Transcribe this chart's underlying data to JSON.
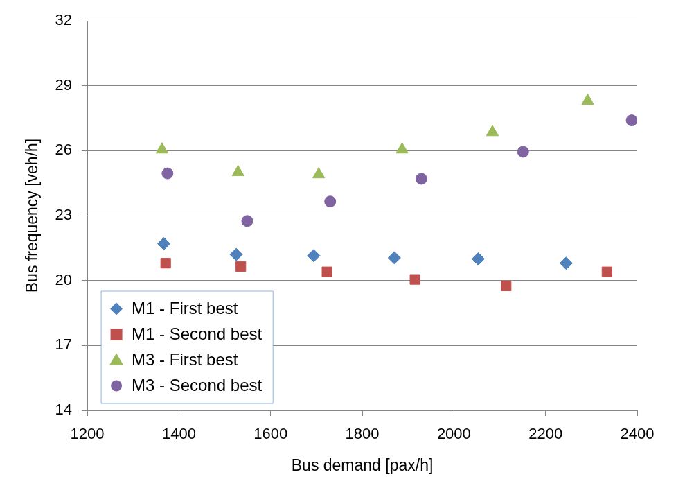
{
  "chart_data": {
    "type": "scatter",
    "xlabel": "Bus demand [pax/h]",
    "ylabel": "Bus frequency [veh/h]",
    "xlim": [
      1200,
      2400
    ],
    "xticks": [
      1200,
      1400,
      1600,
      1800,
      2000,
      2200,
      2400
    ],
    "ylim": [
      14,
      32
    ],
    "yticks": [
      14,
      17,
      20,
      23,
      26,
      29,
      32
    ],
    "grid": "y",
    "legend": "bottom left",
    "series": [
      {
        "name": "M1 - First best",
        "color": "#4f81bd",
        "marker": "diamond",
        "x": [
          1367,
          1525,
          1694,
          1870,
          2053,
          2245
        ],
        "values": [
          21.7,
          21.2,
          21.15,
          21.05,
          21.0,
          20.8
        ]
      },
      {
        "name": "M1 - Second best",
        "color": "#c0504d",
        "marker": "square",
        "x": [
          1371,
          1535,
          1723,
          1915,
          2114,
          2334
        ],
        "values": [
          20.8,
          20.65,
          20.4,
          20.05,
          19.75,
          20.4
        ]
      },
      {
        "name": "M3 - First best",
        "color": "#9bbb59",
        "marker": "triangle",
        "x": [
          1363,
          1529,
          1705,
          1887,
          2084,
          2292
        ],
        "values": [
          26.05,
          25.0,
          24.9,
          26.05,
          26.85,
          28.3
        ]
      },
      {
        "name": "M3 - Second best",
        "color": "#8064a2",
        "marker": "circle",
        "x": [
          1375,
          1549,
          1730,
          1929,
          2151,
          2388
        ],
        "values": [
          24.95,
          22.75,
          23.65,
          24.7,
          25.95,
          27.4
        ]
      }
    ]
  }
}
